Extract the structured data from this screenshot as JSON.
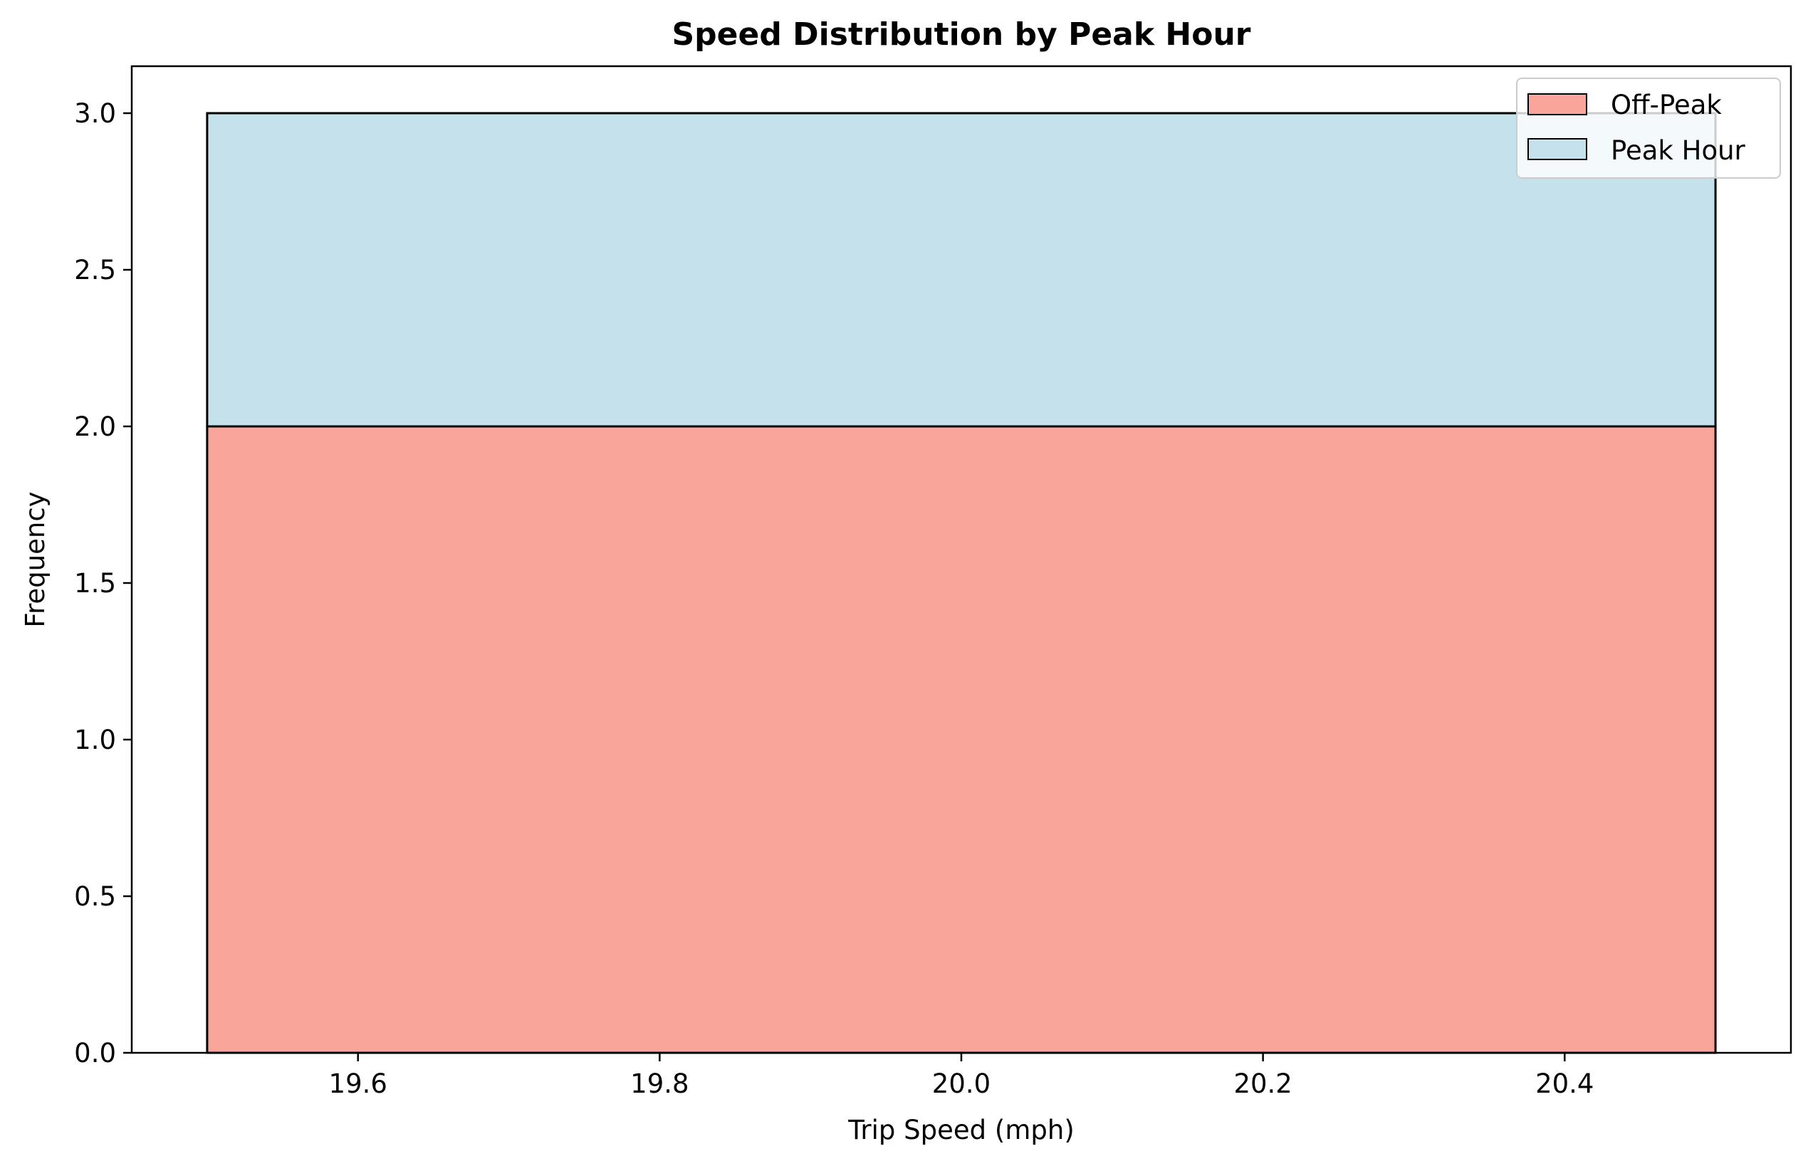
{
  "chart_data": {
    "type": "bar",
    "title": "Speed Distribution by Peak Hour",
    "xlabel": "Trip Speed (mph)",
    "ylabel": "Frequency",
    "stacked": true,
    "bin_edges": [
      19.5,
      20.5
    ],
    "xlim": [
      19.45,
      20.55
    ],
    "ylim": [
      0,
      3.15
    ],
    "xticks": [
      19.6,
      19.8,
      20.0,
      20.2,
      20.4
    ],
    "xtick_labels": [
      "19.6",
      "19.8",
      "20.0",
      "20.2",
      "20.4"
    ],
    "yticks": [
      0,
      0.5,
      1.0,
      1.5,
      2.0,
      2.5,
      3.0
    ],
    "ytick_labels": [
      "0.0",
      "0.5",
      "1.0",
      "1.5",
      "2.0",
      "2.5",
      "3.0"
    ],
    "series": [
      {
        "name": "Off-Peak",
        "values": [
          2
        ],
        "color": "#f9a59a"
      },
      {
        "name": "Peak Hour",
        "values": [
          1
        ],
        "color": "#c5e2ec"
      }
    ],
    "legend": {
      "position": "top-right"
    },
    "grid": false
  }
}
